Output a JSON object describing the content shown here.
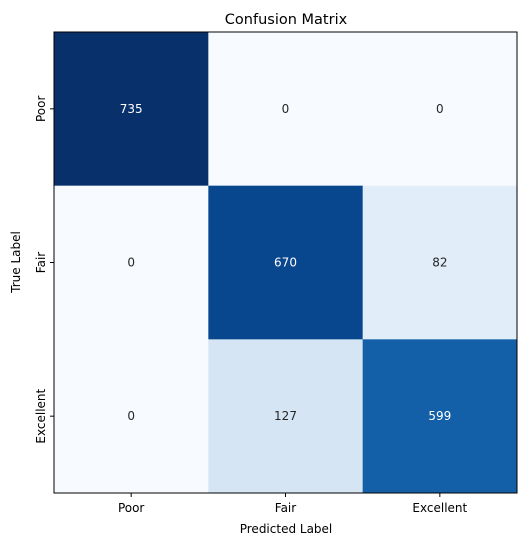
{
  "chart_data": {
    "type": "heatmap",
    "title": "Confusion Matrix",
    "xlabel": "Predicted Label",
    "ylabel": "True Label",
    "x_categories": [
      "Poor",
      "Fair",
      "Excellent"
    ],
    "y_categories": [
      "Poor",
      "Fair",
      "Excellent"
    ],
    "values": [
      [
        735,
        0,
        0
      ],
      [
        0,
        670,
        82
      ],
      [
        0,
        127,
        599
      ]
    ],
    "colormap": "Blues",
    "colorbar": false,
    "grid": false
  }
}
